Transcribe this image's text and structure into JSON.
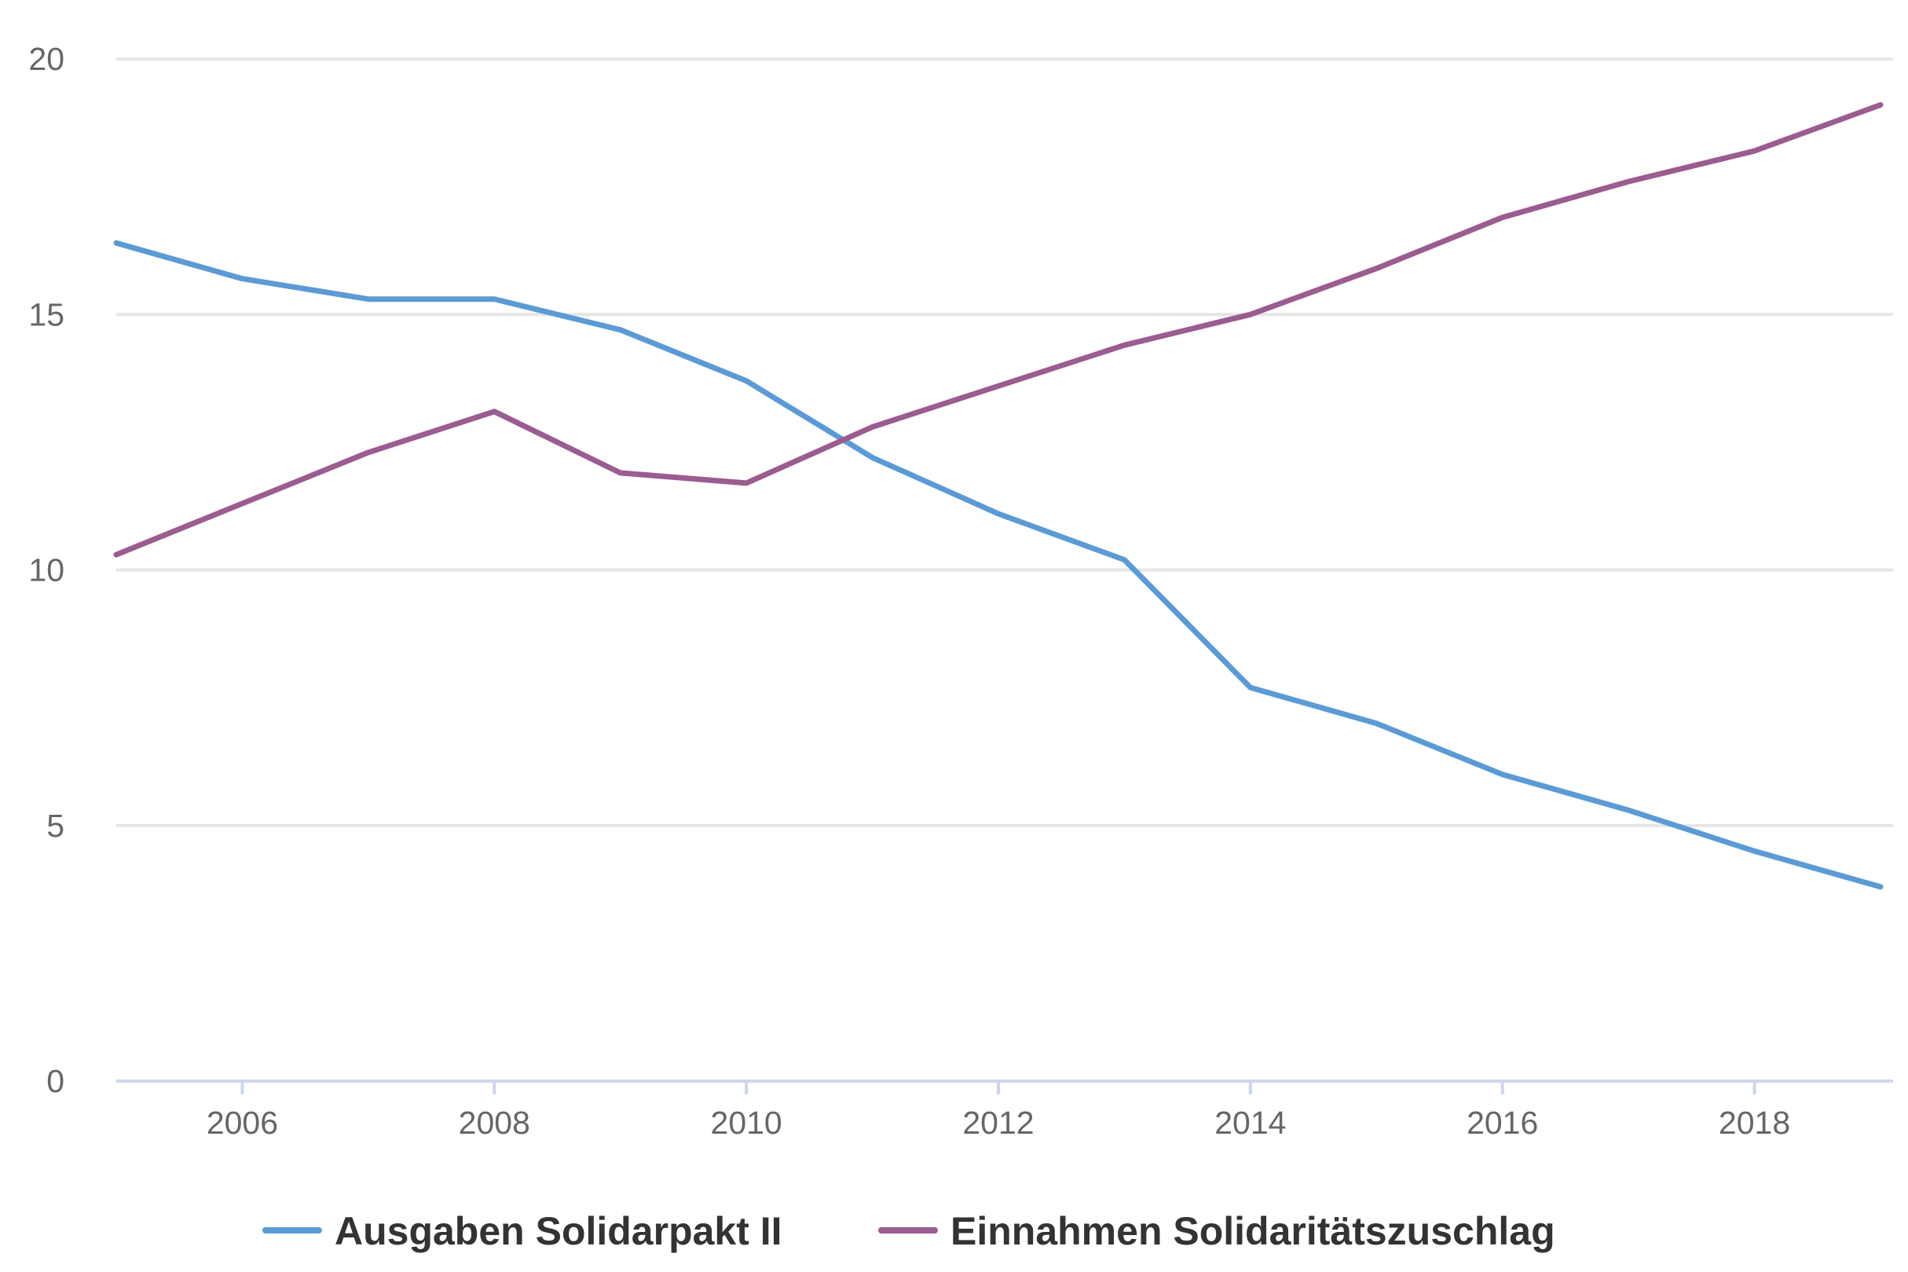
{
  "chart_data": {
    "type": "line",
    "title": "",
    "xlabel": "",
    "ylabel": "",
    "x": [
      2005,
      2006,
      2007,
      2008,
      2009,
      2010,
      2011,
      2012,
      2013,
      2014,
      2015,
      2016,
      2017,
      2018,
      2019
    ],
    "x_ticks": [
      2006,
      2008,
      2010,
      2012,
      2014,
      2016,
      2018
    ],
    "y_ticks": [
      0,
      5,
      10,
      15,
      20
    ],
    "xlim": [
      2005,
      2019.1
    ],
    "ylim": [
      0,
      20
    ],
    "grid": true,
    "legend_position": "bottom",
    "series": [
      {
        "name": "Ausgaben Solidarpakt II",
        "color": "#5b9bd5",
        "values": [
          16.4,
          15.7,
          15.3,
          15.3,
          14.7,
          13.7,
          12.2,
          11.1,
          10.2,
          7.7,
          7.0,
          6.0,
          5.3,
          4.5,
          3.8
        ]
      },
      {
        "name": "Einnahmen Solidaritätszuschlag",
        "color": "#9b5c8f",
        "values": [
          10.3,
          11.3,
          12.3,
          13.1,
          11.9,
          11.7,
          12.8,
          13.6,
          14.4,
          15.0,
          15.9,
          16.9,
          17.6,
          18.2,
          19.1
        ]
      }
    ]
  }
}
